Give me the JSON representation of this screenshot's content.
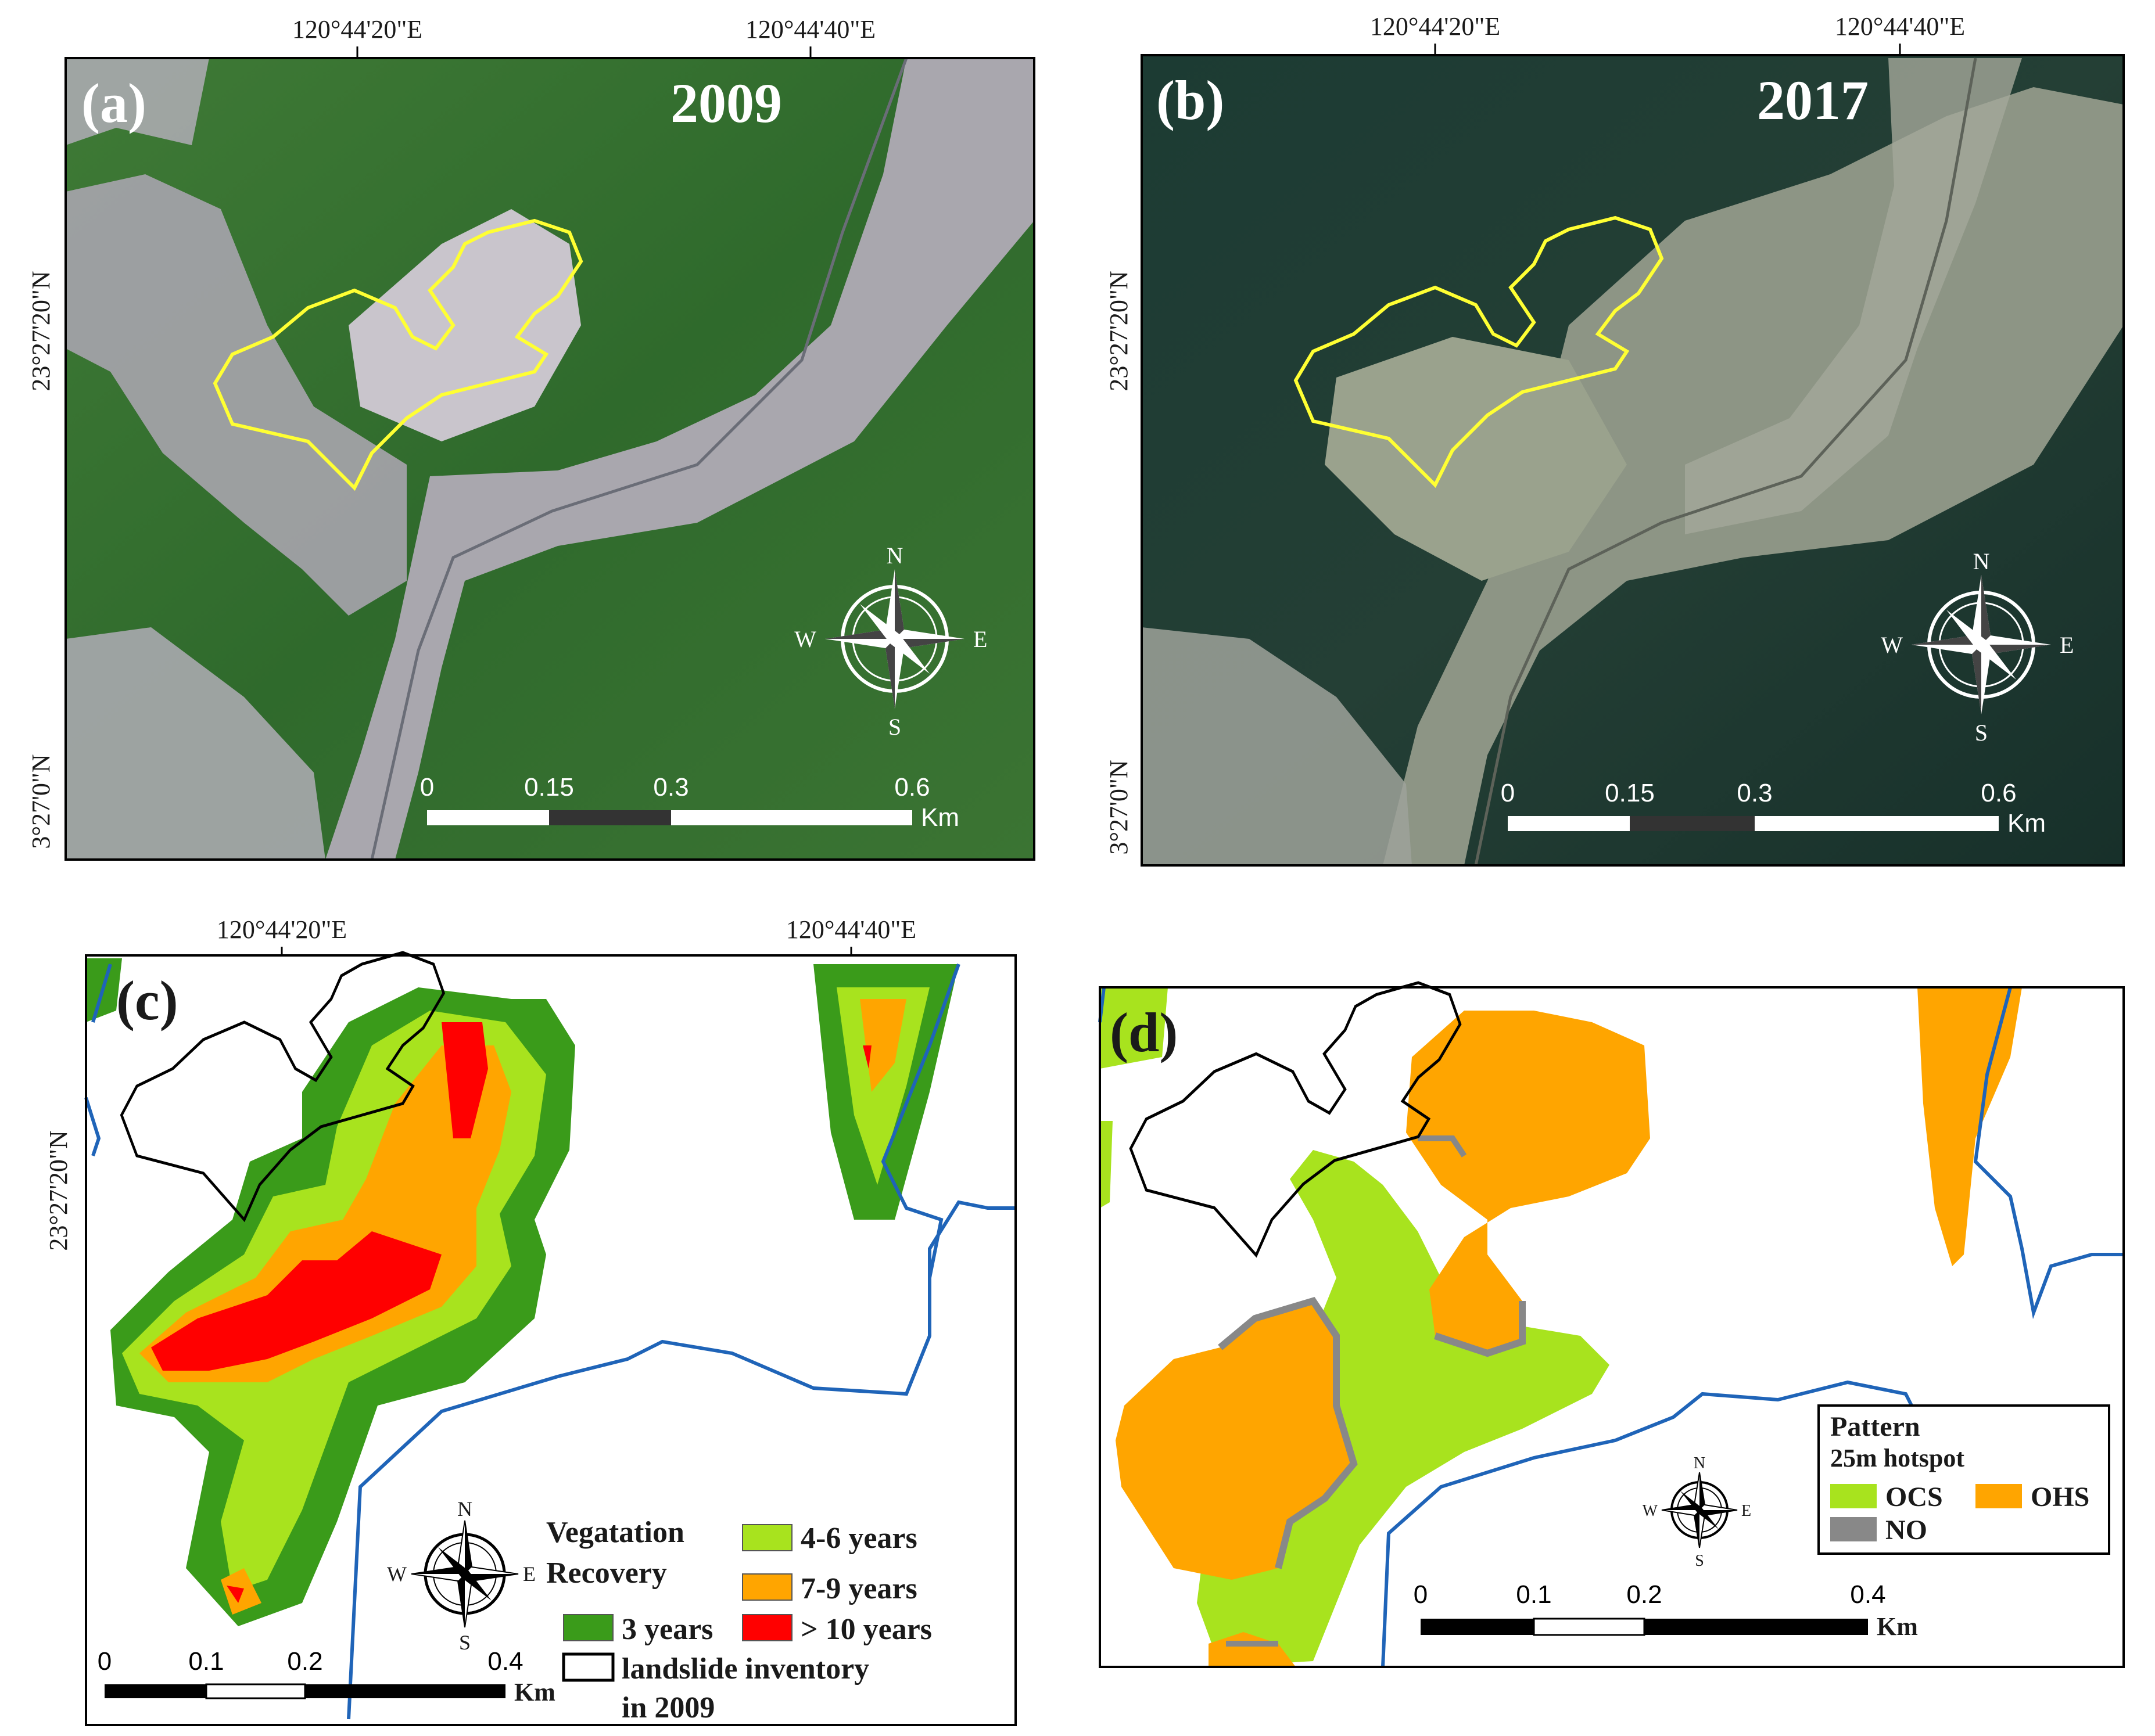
{
  "panels": {
    "a": {
      "letter": "(a)",
      "year": "2009",
      "top_ticks": [
        "120°44'20\"E",
        "120°44'40\"E"
      ],
      "left_ticks": [
        "23°27'20\"N",
        "3°27'0\"N"
      ],
      "scale_labels": [
        "0",
        "0.15",
        "0.3",
        "0.6"
      ],
      "scale_unit": "Km",
      "compass": [
        "N",
        "E",
        "S",
        "W"
      ]
    },
    "b": {
      "letter": "(b)",
      "year": "2017",
      "top_ticks": [
        "120°44'20\"E",
        "120°44'40\"E"
      ],
      "left_ticks": [
        "23°27'20\"N",
        "3°27'0\"N"
      ],
      "scale_labels": [
        "0",
        "0.15",
        "0.3",
        "0.6"
      ],
      "scale_unit": "Km",
      "compass": [
        "N",
        "E",
        "S",
        "W"
      ]
    },
    "c": {
      "letter": "(c)",
      "top_ticks": [
        "120°44'20\"E",
        "120°44'40\"E"
      ],
      "left_ticks": [
        "23°27'20\"N"
      ],
      "scale_labels": [
        "0",
        "0.1",
        "0.2",
        "0.4"
      ],
      "scale_unit": "Km",
      "compass": [
        "N",
        "E",
        "S",
        "W"
      ],
      "legend": {
        "title_line1": "Vegatation",
        "title_line2": "Recovery",
        "items": [
          {
            "label": "4-6 years",
            "color": "#a8e31e"
          },
          {
            "label": "7-9 years",
            "color": "#ffa500"
          },
          {
            "label": "3 years",
            "color": "#3a9b1a"
          },
          {
            "label": "> 10 years",
            "color": "#ff0000"
          }
        ],
        "outline_line1": "landslide inventory",
        "outline_line2": "in 2009"
      }
    },
    "d": {
      "letter": "(d)",
      "scale_labels": [
        "0",
        "0.1",
        "0.2",
        "0.4"
      ],
      "scale_unit": "Km",
      "compass": [
        "N",
        "E",
        "S",
        "W"
      ],
      "legend": {
        "title": "Pattern",
        "subtitle": "25m hotspot",
        "items": [
          {
            "label": "OCS",
            "color": "#a8e31e"
          },
          {
            "label": "OHS",
            "color": "#ffa500"
          },
          {
            "label": "NO",
            "color": "#888888"
          }
        ]
      }
    }
  },
  "colors": {
    "landslide_outline_2009": "#ffff33",
    "river": "#1f64b8",
    "inventory_outline": "#000000"
  }
}
